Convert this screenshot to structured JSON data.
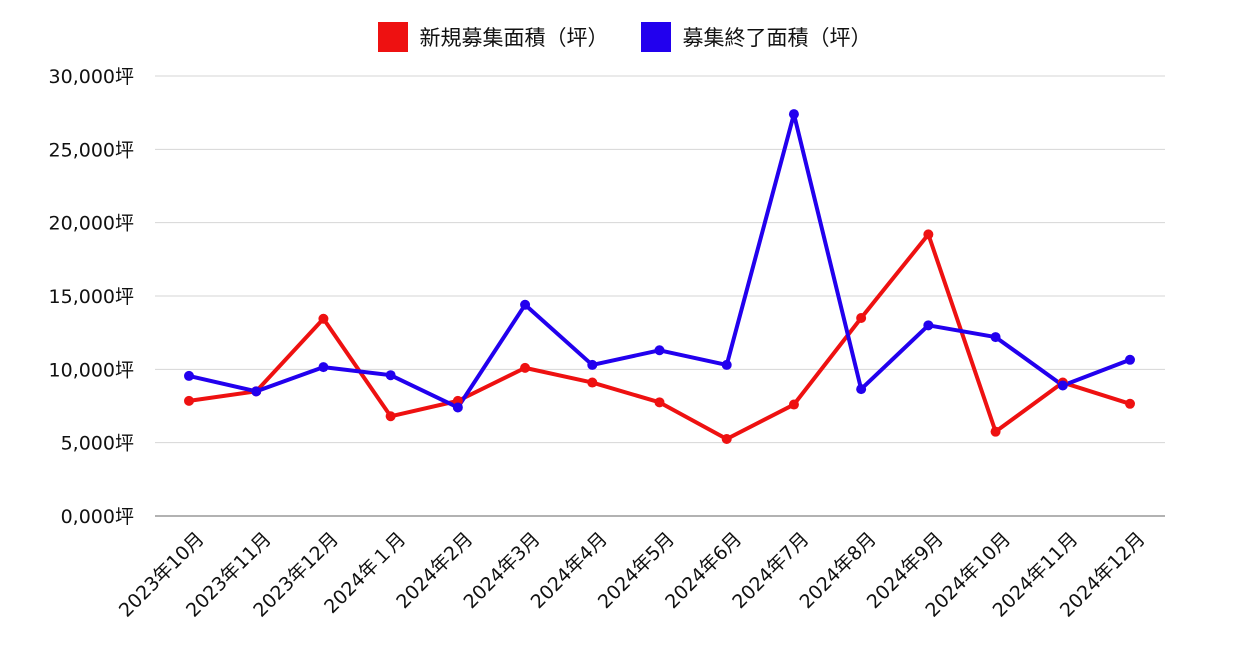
{
  "chart_data": {
    "type": "line",
    "title": "",
    "xlabel": "",
    "ylabel": "",
    "categories": [
      "2023年10月",
      "2023年11月",
      "2023年12月",
      "2024年１月",
      "2024年2月",
      "2024年3月",
      "2024年4月",
      "2024年5月",
      "2024年6月",
      "2024年7月",
      "2024年8月",
      "2024年9月",
      "2024年10月",
      "2024年11月",
      "2024年12月"
    ],
    "y_tick_labels": [
      "0,000坪",
      "5,000坪",
      "10,000坪",
      "15,000坪",
      "20,000坪",
      "25,000坪",
      "30,000坪"
    ],
    "ylim": [
      0,
      30000
    ],
    "grid": true,
    "legend_position": "top-center",
    "series": [
      {
        "name": "新規募集面積（坪）",
        "color": "#ee1111",
        "values": [
          7850,
          8500,
          13450,
          6800,
          7850,
          10100,
          9100,
          7750,
          5250,
          7600,
          13500,
          19200,
          5750,
          9100,
          7650
        ]
      },
      {
        "name": "募集終了面積（坪）",
        "color": "#2200ee",
        "values": [
          9550,
          8500,
          10150,
          9600,
          7400,
          14400,
          10300,
          11300,
          10300,
          27400,
          8650,
          13000,
          12200,
          8900,
          10650
        ]
      }
    ]
  }
}
